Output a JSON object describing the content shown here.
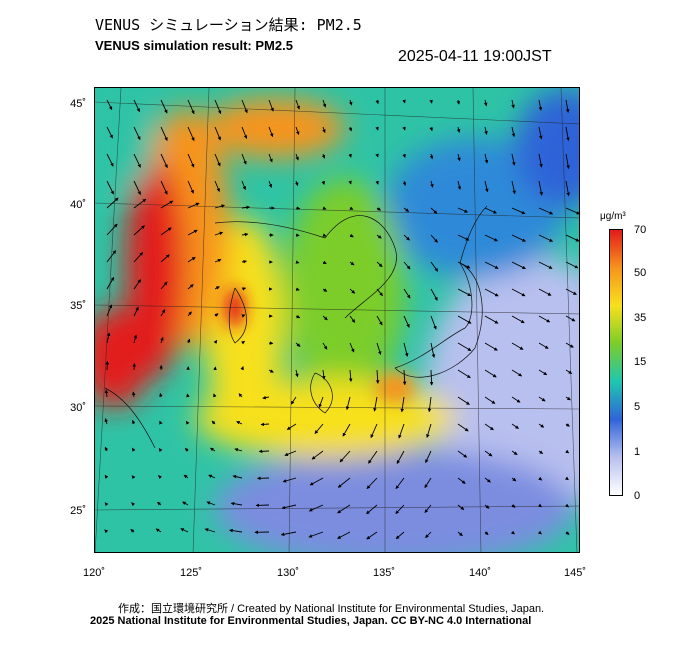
{
  "header": {
    "title_ja": "VENUS シミュレーション結果: PM2.5",
    "title_en": "VENUS simulation result: PM2.5",
    "timestamp": "2025-04-11 19:00JST"
  },
  "map": {
    "lat_labels": [
      "45˚",
      "40˚",
      "35˚",
      "30˚",
      "25˚"
    ],
    "lon_labels": [
      "120˚",
      "125˚",
      "130˚",
      "135˚",
      "140˚",
      "145˚"
    ],
    "field": "PM2.5 concentration with wind vectors"
  },
  "colorbar": {
    "unit": "μg/m³",
    "labels": [
      "70",
      "50",
      "35",
      "15",
      "5",
      "1",
      "0"
    ],
    "colors": [
      "#e31a1c",
      "#f7941d",
      "#f7e01d",
      "#7ccd2a",
      "#1fc7b0",
      "#2f64d8",
      "#b8c0ef",
      "#ffffff"
    ]
  },
  "footer": {
    "credit_ja": "作成：国立環境研究所 / Created by National Institute for Environmental Studies, Japan.",
    "credit_en": "2025 National Institute for Environmental Studies, Japan. CC BY-NC 4.0 International"
  }
}
